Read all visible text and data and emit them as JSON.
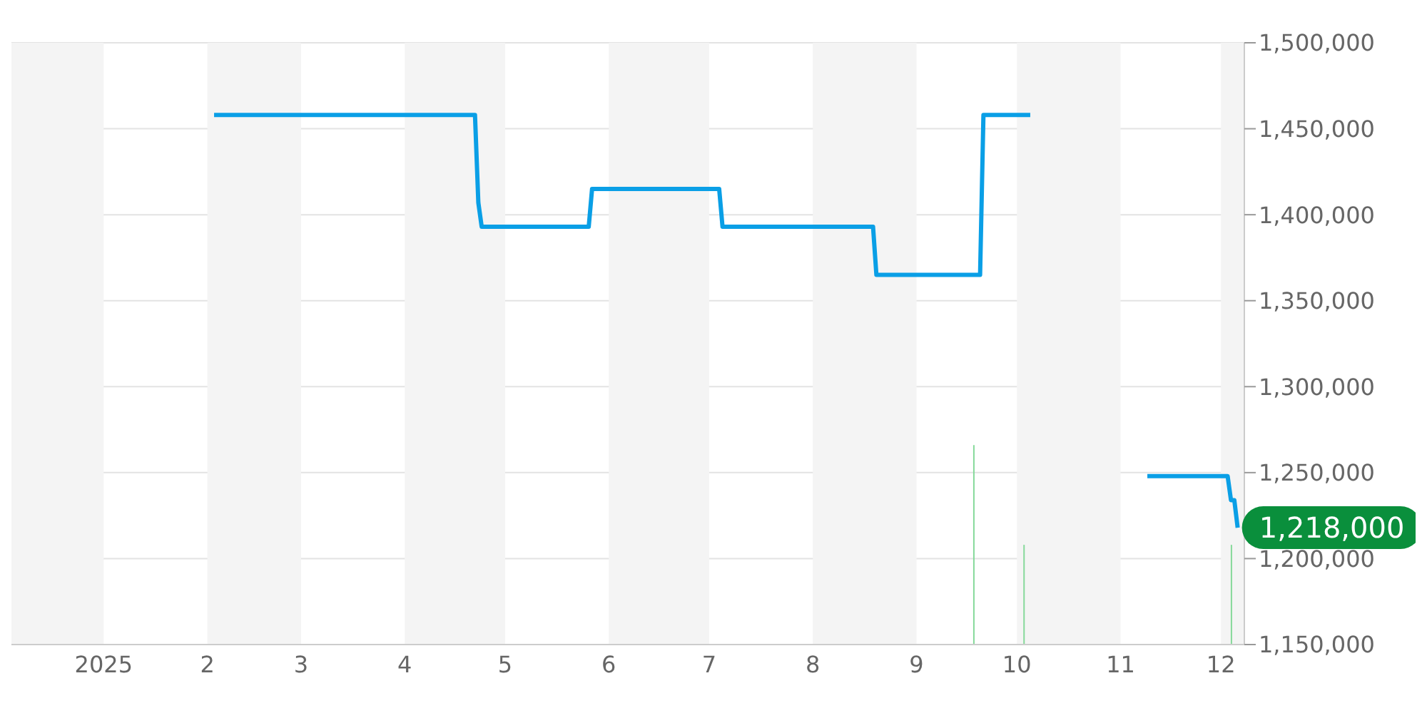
{
  "chart_data": {
    "type": "line",
    "series": [
      {
        "color": "#0a9fe6",
        "x": [
          "2025-02-03",
          "2025-04-22",
          "2025-04-23",
          "2025-04-24",
          "2025-05-26",
          "2025-05-27",
          "2025-07-04",
          "2025-07-05",
          "2025-08-19",
          "2025-08-20",
          "2025-09-20",
          "2025-09-21",
          "2025-10-05",
          "2025-10-06",
          "2025-11-09",
          "2025-12-03",
          "2025-12-04",
          "2025-12-05",
          "2025-12-06"
        ],
        "values": [
          1458000,
          1458000,
          1407000,
          1393000,
          1393000,
          1415000,
          1415000,
          1393000,
          1393000,
          1365000,
          1365000,
          1458000,
          1458000,
          null,
          1248000,
          1248000,
          1234000,
          1234000,
          1218000
        ]
      },
      {
        "type": "bar",
        "color": "#86d99a",
        "x": [
          "2025-09-18",
          "2025-10-03",
          "2025-12-04"
        ],
        "values": [
          1266000,
          1208000,
          1208000
        ]
      }
    ],
    "xlim": [
      "2024-12-01",
      "2025-12-08"
    ],
    "xticks": [
      {
        "value": "2025-01-01",
        "label": "2025"
      },
      {
        "value": "2025-02-01",
        "label": "2"
      },
      {
        "value": "2025-03-01",
        "label": "3"
      },
      {
        "value": "2025-04-01",
        "label": "4"
      },
      {
        "value": "2025-05-01",
        "label": "5"
      },
      {
        "value": "2025-06-01",
        "label": "6"
      },
      {
        "value": "2025-07-01",
        "label": "7"
      },
      {
        "value": "2025-08-01",
        "label": "8"
      },
      {
        "value": "2025-09-01",
        "label": "9"
      },
      {
        "value": "2025-10-01",
        "label": "10"
      },
      {
        "value": "2025-11-01",
        "label": "11"
      },
      {
        "value": "2025-12-01",
        "label": "12"
      }
    ],
    "ylim": [
      1150000,
      1500000
    ],
    "yticks": [
      {
        "value": 1150000,
        "label": "1,150,000"
      },
      {
        "value": 1200000,
        "label": "1,200,000"
      },
      {
        "value": 1250000,
        "label": "1,250,000"
      },
      {
        "value": 1300000,
        "label": "1,300,000"
      },
      {
        "value": 1350000,
        "label": "1,350,000"
      },
      {
        "value": 1400000,
        "label": "1,400,000"
      },
      {
        "value": 1450000,
        "label": "1,450,000"
      },
      {
        "value": 1500000,
        "label": "1,500,000"
      }
    ],
    "bands": [
      {
        "axis": "x",
        "from": "2024-12-01",
        "to": "2025-01-01",
        "color": "#f4f4f4"
      },
      {
        "axis": "x",
        "from": "2025-02-01",
        "to": "2025-03-01",
        "color": "#f4f4f4"
      },
      {
        "axis": "x",
        "from": "2025-04-01",
        "to": "2025-05-01",
        "color": "#f4f4f4"
      },
      {
        "axis": "x",
        "from": "2025-06-01",
        "to": "2025-07-01",
        "color": "#f4f4f4"
      },
      {
        "axis": "x",
        "from": "2025-08-01",
        "to": "2025-09-01",
        "color": "#f4f4f4"
      },
      {
        "axis": "x",
        "from": "2025-10-01",
        "to": "2025-11-01",
        "color": "#f4f4f4"
      },
      {
        "axis": "x",
        "from": "2025-12-01",
        "to": "2025-12-08",
        "color": "#f4f4f4"
      }
    ],
    "annotations": [
      {
        "text": "1,218,000",
        "x": "2025-12-06",
        "y": 1218000
      }
    ],
    "grid": "y",
    "legend": false,
    "marker": "none",
    "line_style": "solid"
  }
}
